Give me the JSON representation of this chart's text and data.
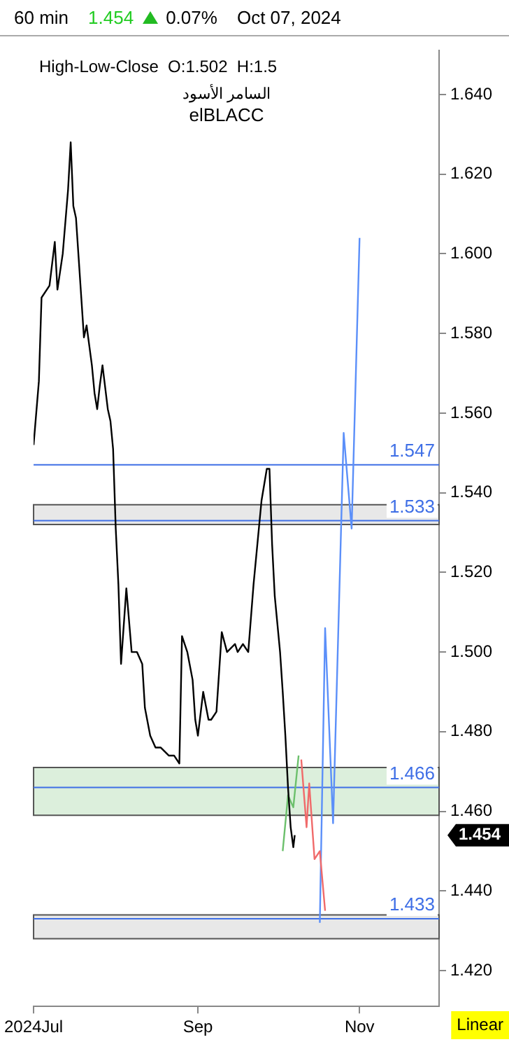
{
  "chart_data": {
    "type": "line",
    "title": "60 min",
    "subtitle": "High-Low-Close  O:1.502  H:1.5",
    "annotations": [
      "1.454",
      "0.07%",
      "Oct 07, 2024",
      "السامر الأسود",
      "elBLACC",
      "Linear",
      "1.454"
    ],
    "series": [
      {
        "color": "#000000",
        "x": [
          "2024-07-01",
          "2024-07-03",
          "2024-07-04",
          "2024-07-07",
          "2024-07-09",
          "2024-07-10",
          "2024-07-12",
          "2024-07-14",
          "2024-07-15",
          "2024-07-16",
          "2024-07-17",
          "2024-07-18",
          "2024-07-19",
          "2024-07-20",
          "2024-07-21",
          "2024-07-22",
          "2024-07-23",
          "2024-07-24",
          "2024-07-25",
          "2024-07-26",
          "2024-07-27",
          "2024-07-29",
          "2024-07-30",
          "2024-07-31",
          "2024-08-01",
          "2024-08-02",
          "2024-08-03",
          "2024-08-05",
          "2024-08-07",
          "2024-08-09",
          "2024-08-11",
          "2024-08-12",
          "2024-08-14",
          "2024-08-16",
          "2024-08-18",
          "2024-08-21",
          "2024-08-23",
          "2024-08-25",
          "2024-08-26",
          "2024-08-28",
          "2024-08-30",
          "2024-08-31",
          "2024-09-01",
          "2024-09-03",
          "2024-09-05",
          "2024-09-06",
          "2024-09-08",
          "2024-09-10",
          "2024-09-12",
          "2024-09-15",
          "2024-09-16",
          "2024-09-18",
          "2024-09-20",
          "2024-09-22",
          "2024-09-23",
          "2024-09-25",
          "2024-09-27",
          "2024-09-28",
          "2024-09-29",
          "2024-09-30",
          "2024-10-02",
          "2024-10-03",
          "2024-10-04",
          "2024-10-05",
          "2024-10-06",
          "2024-10-07",
          "2024-10-07T13:00"
        ],
        "values": [
          1.552,
          1.568,
          1.589,
          1.592,
          1.603,
          1.591,
          1.6,
          1.616,
          1.628,
          1.612,
          1.609,
          1.599,
          1.589,
          1.579,
          1.582,
          1.577,
          1.572,
          1.565,
          1.561,
          1.567,
          1.572,
          1.561,
          1.558,
          1.551,
          1.531,
          1.517,
          1.497,
          1.516,
          1.5,
          1.5,
          1.497,
          1.486,
          1.479,
          1.476,
          1.476,
          1.474,
          1.474,
          1.472,
          1.504,
          1.5,
          1.493,
          1.483,
          1.479,
          1.49,
          1.483,
          1.483,
          1.485,
          1.505,
          1.5,
          1.502,
          1.5,
          1.502,
          1.5,
          1.517,
          1.524,
          1.538,
          1.546,
          1.546,
          1.527,
          1.514,
          1.5,
          1.49,
          1.479,
          1.466,
          1.456,
          1.451,
          1.454
        ]
      },
      {
        "color": "#6cc06c",
        "x": [
          "2024-10-03",
          "2024-10-05",
          "2024-10-07",
          "2024-10-09"
        ],
        "values": [
          1.45,
          1.464,
          1.461,
          1.474
        ]
      },
      {
        "color": "#f06a6a",
        "x": [
          "2024-10-10",
          "2024-10-12",
          "2024-10-13",
          "2024-10-15",
          "2024-10-17",
          "2024-10-19"
        ],
        "values": [
          1.473,
          1.456,
          1.467,
          1.448,
          1.45,
          1.435
        ]
      },
      {
        "color": "#5b8ff9",
        "x": [
          "2024-10-17",
          "2024-10-19",
          "2024-10-22",
          "2024-10-26",
          "2024-10-29",
          "2024-11-01"
        ],
        "values": [
          1.432,
          1.506,
          1.457,
          1.555,
          1.531,
          1.604
        ]
      }
    ],
    "ref_lines": [
      {
        "axis": "y",
        "value": 1.547,
        "label": "1.547",
        "color": "#3f6fe6"
      },
      {
        "axis": "y",
        "value": 1.533,
        "label": "1.533",
        "color": "#3f6fe6"
      },
      {
        "axis": "y",
        "value": 1.466,
        "label": "1.466",
        "color": "#3f6fe6"
      },
      {
        "axis": "y",
        "value": 1.433,
        "label": "1.433",
        "color": "#3f6fe6"
      }
    ],
    "bands": [
      {
        "axis": "y",
        "from": 1.532,
        "to": 1.537,
        "color": "#e8e8e8"
      },
      {
        "axis": "y",
        "from": 1.459,
        "to": 1.471,
        "color": "#dcefdc"
      },
      {
        "axis": "y",
        "from": 1.428,
        "to": 1.434,
        "color": "#e8e8e8"
      }
    ],
    "xlim": [
      "2024-07-01",
      "2024-12-01"
    ],
    "xticks": [
      {
        "value": "2024-07-01",
        "label": "2024Jul"
      },
      {
        "value": "2024-09-01",
        "label": "Sep"
      },
      {
        "value": "2024-11-01",
        "label": "Nov"
      }
    ],
    "ylim": [
      1.411,
      1.651
    ],
    "yticks": [
      {
        "value": 1.42,
        "label": "1.420"
      },
      {
        "value": 1.44,
        "label": "1.440"
      },
      {
        "value": 1.46,
        "label": "1.460"
      },
      {
        "value": 1.48,
        "label": "1.480"
      },
      {
        "value": 1.5,
        "label": "1.500"
      },
      {
        "value": 1.52,
        "label": "1.520"
      },
      {
        "value": 1.54,
        "label": "1.540"
      },
      {
        "value": 1.56,
        "label": "1.560"
      },
      {
        "value": 1.58,
        "label": "1.580"
      },
      {
        "value": 1.6,
        "label": "1.600"
      },
      {
        "value": 1.62,
        "label": "1.620"
      },
      {
        "value": 1.64,
        "label": "1.640"
      }
    ],
    "grid": false,
    "legend": false,
    "marker": "none",
    "line_style": "solid"
  }
}
